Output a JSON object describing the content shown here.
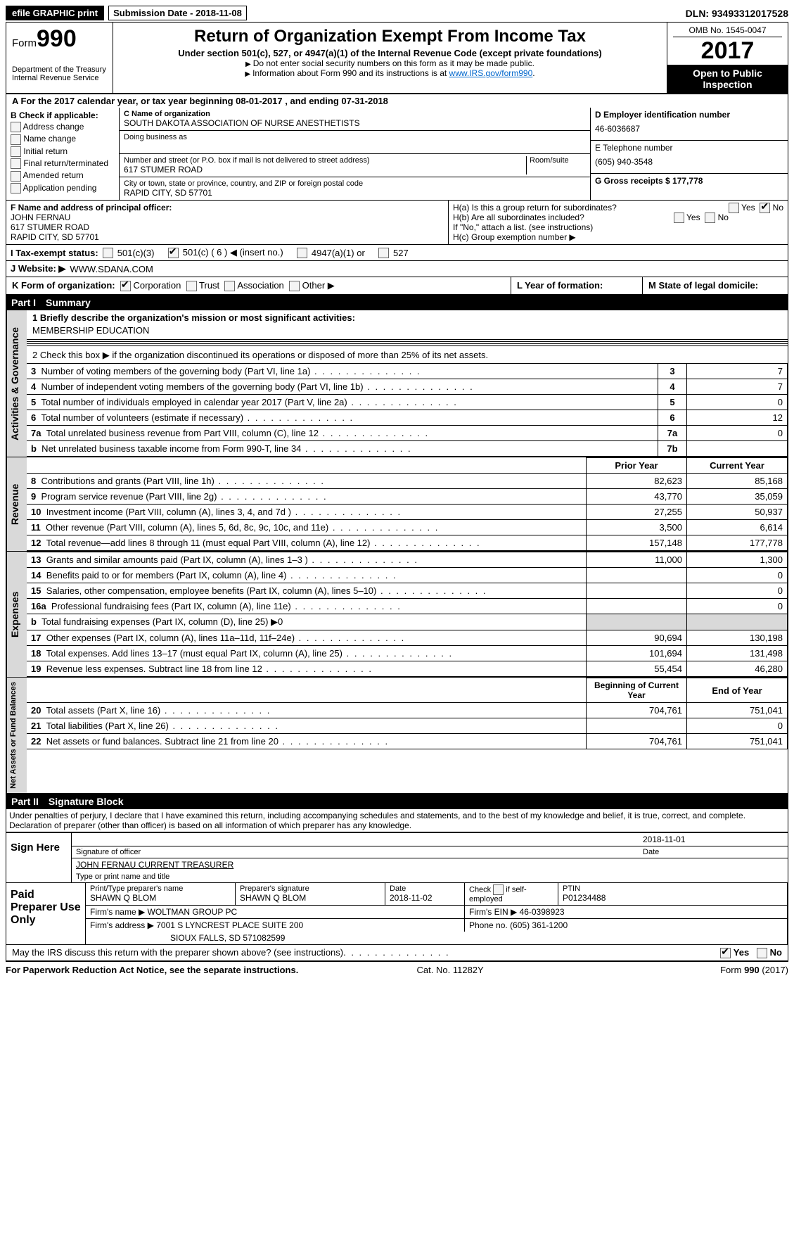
{
  "topbar": {
    "efile_btn": "efile GRAPHIC print",
    "submission_label": "Submission Date - 2018-11-08",
    "dln": "DLN: 93493312017528"
  },
  "header": {
    "form_prefix": "Form",
    "form_number": "990",
    "dept": "Department of the Treasury",
    "irs": "Internal Revenue Service",
    "title": "Return of Organization Exempt From Income Tax",
    "subtitle": "Under section 501(c), 527, or 4947(a)(1) of the Internal Revenue Code (except private foundations)",
    "note1": "Do not enter social security numbers on this form as it may be made public.",
    "note2_pre": "Information about Form 990 and its instructions is at ",
    "note2_link": "www.IRS.gov/form990",
    "omb": "OMB No. 1545-0047",
    "year": "2017",
    "inspect": "Open to Public Inspection"
  },
  "lineA": "A  For the 2017 calendar year, or tax year beginning 08-01-2017   , and ending 07-31-2018",
  "colB": {
    "title": "B Check if applicable:",
    "items": [
      "Address change",
      "Name change",
      "Initial return",
      "Final return/terminated",
      "Amended return",
      "Application pending"
    ]
  },
  "org": {
    "name_lbl": "C Name of organization",
    "name": "SOUTH DAKOTA ASSOCIATION OF NURSE ANESTHETISTS",
    "dba_lbl": "Doing business as",
    "street_lbl": "Number and street (or P.O. box if mail is not delivered to street address)",
    "room_lbl": "Room/suite",
    "street": "617 STUMER ROAD",
    "city_lbl": "City or town, state or province, country, and ZIP or foreign postal code",
    "city": "RAPID CITY, SD  57701"
  },
  "right": {
    "ein_lbl": "D Employer identification number",
    "ein": "46-6036687",
    "phone_lbl": "E Telephone number",
    "phone": "(605) 940-3548",
    "gross_lbl": "G Gross receipts $ 177,778"
  },
  "officer": {
    "lbl": "F  Name and address of principal officer:",
    "name": "JOHN FERNAU",
    "street": "617 STUMER ROAD",
    "city": "RAPID CITY, SD  57701"
  },
  "H": {
    "a": "H(a)  Is this a group return for subordinates?",
    "b": "H(b)  Are all subordinates included?",
    "note": "If \"No,\" attach a list. (see instructions)",
    "c": "H(c)  Group exemption number ▶"
  },
  "I": {
    "lbl": "I  Tax-exempt status:",
    "o1": "501(c)(3)",
    "o2": "501(c) ( 6 ) ◀ (insert no.)",
    "o3": "4947(a)(1) or",
    "o4": "527"
  },
  "J": {
    "lbl": "J  Website: ▶",
    "val": "WWW.SDANA.COM"
  },
  "K": {
    "lbl": "K Form of organization:",
    "o1": "Corporation",
    "o2": "Trust",
    "o3": "Association",
    "o4": "Other ▶"
  },
  "L": "L Year of formation:",
  "M": "M State of legal domicile:",
  "part1": {
    "num": "Part I",
    "title": "Summary"
  },
  "summary": {
    "l1": "1   Briefly describe the organization's mission or most significant activities:",
    "l1v": "MEMBERSHIP EDUCATION",
    "l2": "2   Check this box ▶        if the organization discontinued its operations or disposed of more than 25% of its net assets."
  },
  "govRows": [
    {
      "n": "3",
      "txt": "Number of voting members of the governing body (Part VI, line 1a)",
      "c": "3",
      "v": "7"
    },
    {
      "n": "4",
      "txt": "Number of independent voting members of the governing body (Part VI, line 1b)",
      "c": "4",
      "v": "7"
    },
    {
      "n": "5",
      "txt": "Total number of individuals employed in calendar year 2017 (Part V, line 2a)",
      "c": "5",
      "v": "0"
    },
    {
      "n": "6",
      "txt": "Total number of volunteers (estimate if necessary)",
      "c": "6",
      "v": "12"
    },
    {
      "n": "7a",
      "txt": "Total unrelated business revenue from Part VIII, column (C), line 12",
      "c": "7a",
      "v": "0"
    },
    {
      "n": "b",
      "txt": "Net unrelated business taxable income from Form 990-T, line 34",
      "c": "7b",
      "v": ""
    }
  ],
  "yearHdr": {
    "prior": "Prior Year",
    "curr": "Current Year"
  },
  "revRows": [
    {
      "n": "8",
      "txt": "Contributions and grants (Part VIII, line 1h)",
      "p": "82,623",
      "c": "85,168"
    },
    {
      "n": "9",
      "txt": "Program service revenue (Part VIII, line 2g)",
      "p": "43,770",
      "c": "35,059"
    },
    {
      "n": "10",
      "txt": "Investment income (Part VIII, column (A), lines 3, 4, and 7d )",
      "p": "27,255",
      "c": "50,937"
    },
    {
      "n": "11",
      "txt": "Other revenue (Part VIII, column (A), lines 5, 6d, 8c, 9c, 10c, and 11e)",
      "p": "3,500",
      "c": "6,614"
    },
    {
      "n": "12",
      "txt": "Total revenue—add lines 8 through 11 (must equal Part VIII, column (A), line 12)",
      "p": "157,148",
      "c": "177,778"
    }
  ],
  "expRows": [
    {
      "n": "13",
      "txt": "Grants and similar amounts paid (Part IX, column (A), lines 1–3 )",
      "p": "11,000",
      "c": "1,300"
    },
    {
      "n": "14",
      "txt": "Benefits paid to or for members (Part IX, column (A), line 4)",
      "p": "",
      "c": "0"
    },
    {
      "n": "15",
      "txt": "Salaries, other compensation, employee benefits (Part IX, column (A), lines 5–10)",
      "p": "",
      "c": "0"
    },
    {
      "n": "16a",
      "txt": "Professional fundraising fees (Part IX, column (A), line 11e)",
      "p": "",
      "c": "0"
    },
    {
      "n": "b",
      "txt": "Total fundraising expenses (Part IX, column (D), line 25) ▶0",
      "p": "GREY",
      "c": "GREY"
    },
    {
      "n": "17",
      "txt": "Other expenses (Part IX, column (A), lines 11a–11d, 11f–24e)",
      "p": "90,694",
      "c": "130,198"
    },
    {
      "n": "18",
      "txt": "Total expenses. Add lines 13–17 (must equal Part IX, column (A), line 25)",
      "p": "101,694",
      "c": "131,498"
    },
    {
      "n": "19",
      "txt": "Revenue less expenses. Subtract line 18 from line 12",
      "p": "55,454",
      "c": "46,280"
    }
  ],
  "balHdr": {
    "beg": "Beginning of Current Year",
    "end": "End of Year"
  },
  "balRows": [
    {
      "n": "20",
      "txt": "Total assets (Part X, line 16)",
      "p": "704,761",
      "c": "751,041"
    },
    {
      "n": "21",
      "txt": "Total liabilities (Part X, line 26)",
      "p": "",
      "c": "0"
    },
    {
      "n": "22",
      "txt": "Net assets or fund balances. Subtract line 21 from line 20",
      "p": "704,761",
      "c": "751,041"
    }
  ],
  "part2": {
    "num": "Part II",
    "title": "Signature Block"
  },
  "perjury": "Under penalties of perjury, I declare that I have examined this return, including accompanying schedules and statements, and to the best of my knowledge and belief, it is true, correct, and complete. Declaration of preparer (other than officer) is based on all information of which preparer has any knowledge.",
  "sign": {
    "lbl": "Sign Here",
    "date": "2018-11-01",
    "sig_lbl": "Signature of officer",
    "date_lbl": "Date",
    "name": "JOHN FERNAU  CURRENT TREASURER",
    "name_lbl": "Type or print name and title"
  },
  "prep": {
    "lbl": "Paid Preparer Use Only",
    "pname_lbl": "Print/Type preparer's name",
    "pname": "SHAWN Q BLOM",
    "psig_lbl": "Preparer's signature",
    "psig": "SHAWN Q BLOM",
    "pdate_lbl": "Date",
    "pdate": "2018-11-02",
    "self_lbl": "Check        if self-employed",
    "ptin_lbl": "PTIN",
    "ptin": "P01234488",
    "firm_lbl": "Firm's name    ▶",
    "firm": "WOLTMAN GROUP PC",
    "fein_lbl": "Firm's EIN ▶",
    "fein": "46-0398923",
    "addr_lbl": "Firm's address ▶",
    "addr": "7001 S LYNCREST PLACE SUITE 200",
    "addr2": "SIOUX FALLS, SD   571082599",
    "fphone_lbl": "Phone no.",
    "fphone": "(605) 361-1200"
  },
  "discuss": "May the IRS discuss this return with the preparer shown above? (see instructions)",
  "footer": {
    "left": "For Paperwork Reduction Act Notice, see the separate instructions.",
    "mid": "Cat. No. 11282Y",
    "right": "Form 990 (2017)"
  },
  "vtabs": {
    "gov": "Activities & Governance",
    "rev": "Revenue",
    "exp": "Expenses",
    "bal": "Net Assets or Fund Balances"
  }
}
